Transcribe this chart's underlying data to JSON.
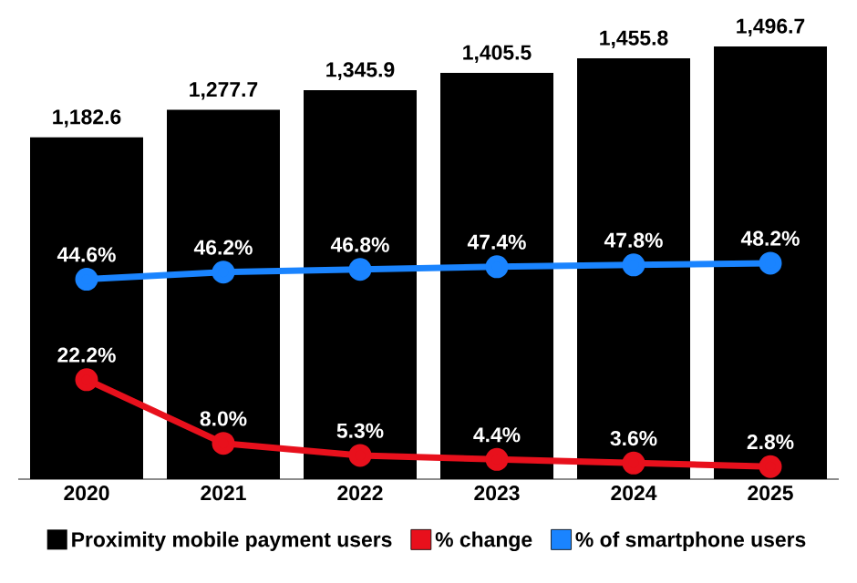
{
  "chart_data": {
    "type": "bar",
    "categories": [
      "2020",
      "2021",
      "2022",
      "2023",
      "2024",
      "2025"
    ],
    "tick_labels": "x",
    "grid": false,
    "legend": "bottom",
    "series": [
      {
        "name": "Proximity mobile payment users",
        "color": "#000000",
        "values": [
          1182.6,
          1277.7,
          1345.9,
          1405.5,
          1455.8,
          1496.7
        ],
        "value_labels": [
          "1,182.6",
          "1,277.7",
          "1,345.9",
          "1,405.5",
          "1,455.8",
          "1,496.7"
        ]
      },
      {
        "name": "% change",
        "type": "line",
        "axis": "y2",
        "marker": "circle",
        "color": "#e8101c",
        "values": [
          22.2,
          8.0,
          5.3,
          4.4,
          3.6,
          2.8
        ],
        "value_labels": [
          "22.2%",
          "8.0%",
          "5.3%",
          "4.4%",
          "3.6%",
          "2.8%"
        ]
      },
      {
        "name": "% of smartphone users",
        "type": "line",
        "axis": "y2",
        "marker": "circle",
        "color": "#1a84ff",
        "values": [
          44.6,
          46.2,
          46.8,
          47.4,
          47.8,
          48.2
        ],
        "value_labels": [
          "44.6%",
          "46.2%",
          "46.8%",
          "47.4%",
          "47.8%",
          "48.2%"
        ]
      }
    ]
  }
}
